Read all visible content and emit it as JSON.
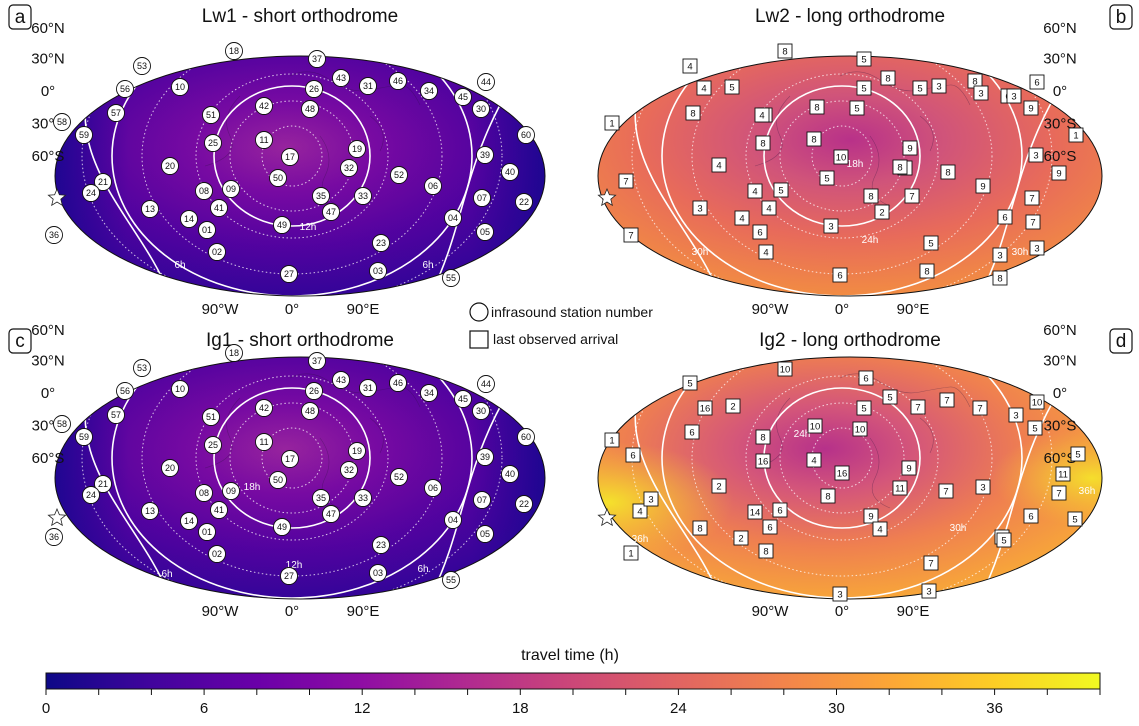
{
  "panels": [
    {
      "key": "a",
      "letter": "a",
      "title": "Lw1 - short orthodrome",
      "kind": "stations",
      "contours": [
        "6h",
        "6h",
        "12h"
      ],
      "letter_side": "left"
    },
    {
      "key": "b",
      "letter": "b",
      "title": "Lw2 - long orthodrome",
      "kind": "arrivals",
      "contours": [
        "18h",
        "24h",
        "30h",
        "30h"
      ],
      "letter_side": "right"
    },
    {
      "key": "c",
      "letter": "c",
      "title": "Ig1 - short orthodrome",
      "kind": "stations",
      "contours": [
        "6h",
        "6h",
        "12h",
        "18h"
      ],
      "letter_side": "left"
    },
    {
      "key": "d",
      "letter": "d",
      "title": "Ig2 - long orthodrome",
      "kind": "arrivals",
      "contours": [
        "24h",
        "30h",
        "36h",
        "36h"
      ],
      "letter_side": "right"
    }
  ],
  "lat_labels": [
    "60°N",
    "30°N",
    "0°",
    "30°S",
    "60°S"
  ],
  "lon_labels": [
    "90°W",
    "0°",
    "90°E"
  ],
  "stations": [
    "53",
    "18",
    "37",
    "56",
    "10",
    "26",
    "43",
    "31",
    "46",
    "34",
    "45",
    "44",
    "57",
    "42",
    "48",
    "30",
    "58",
    "51",
    "59",
    "25",
    "11",
    "60",
    "17",
    "19",
    "20",
    "50",
    "32",
    "39",
    "52",
    "21",
    "08",
    "09",
    "06",
    "40",
    "24",
    "13",
    "41",
    "35",
    "33",
    "07",
    "22",
    "14",
    "49",
    "47",
    "04",
    "01",
    "36",
    "02",
    "23",
    "05",
    "27",
    "03",
    "55"
  ],
  "arrivals_b": [
    "4",
    "8",
    "5",
    "4",
    "5",
    "8",
    "5",
    "3",
    "5",
    "8",
    "6",
    "6",
    "8",
    "8",
    "9",
    "3",
    "3",
    "1",
    "4",
    "8",
    "5",
    "1",
    "8",
    "8",
    "10",
    "9",
    "4",
    "3",
    "9",
    "7",
    "5",
    "8",
    "8",
    "9",
    "7",
    "4",
    "5",
    "4",
    "8",
    "7",
    "3",
    "4",
    "2",
    "6",
    "7",
    "6",
    "7",
    "4",
    "3",
    "3",
    "7",
    "5",
    "3",
    "6",
    "8",
    "8"
  ],
  "arrivals_d": [
    "5",
    "10",
    "6",
    "16",
    "2",
    "5",
    "5",
    "7",
    "7",
    "7",
    "3",
    "10",
    "6",
    "10",
    "10",
    "5",
    "1",
    "6",
    "8",
    "16",
    "4",
    "16",
    "9",
    "2",
    "3",
    "11",
    "7",
    "11",
    "8",
    "5",
    "4",
    "3",
    "14",
    "6",
    "9",
    "6",
    "7",
    "9",
    "8",
    "2",
    "6",
    "4",
    "8",
    "1",
    "5",
    "7",
    "3",
    "5",
    "3"
  ],
  "legend": {
    "station_label": "infrasound station number",
    "arrival_label": "last observed arrival"
  },
  "colorbar": {
    "title": "travel time (h)",
    "min": 0,
    "max": 40,
    "tick_labels": [
      "0",
      "6",
      "12",
      "18",
      "24",
      "30",
      "36"
    ],
    "colormap": "plasma"
  },
  "colors": {
    "plasma_start": "#0d0887",
    "plasma_mid": "#cc4778",
    "plasma_end": "#f0f921"
  }
}
